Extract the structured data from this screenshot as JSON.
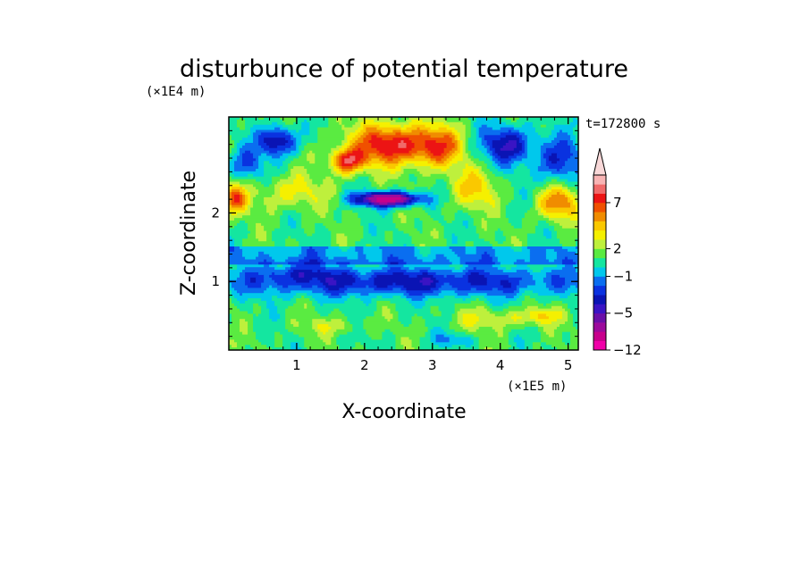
{
  "chart_data": {
    "type": "heatmap",
    "title": "disturbunce of potential temperature",
    "time_label": "t=172800 s",
    "xlabel": "X-coordinate",
    "ylabel": "Z-coordinate",
    "x_scale_label": "(×1E5 m)",
    "y_scale_label": "(×1E4 m)",
    "xlim": [
      0,
      5.15
    ],
    "ylim": [
      0,
      3.4
    ],
    "x_ticks": [
      1,
      2,
      3,
      4,
      5
    ],
    "x_tick_labels": [
      "1",
      "2",
      "3",
      "4",
      "5"
    ],
    "y_ticks": [
      1,
      2
    ],
    "y_tick_labels": [
      "1",
      "2"
    ],
    "colorbar": {
      "levels": [
        -12,
        -10,
        -8,
        -6,
        -5,
        -4,
        -3,
        -2,
        -1,
        0,
        1,
        2,
        3,
        4,
        5,
        6,
        7,
        8,
        9,
        10
      ],
      "colors": [
        "#f000a8",
        "#c8008c",
        "#9c0a9c",
        "#6a0fa8",
        "#3a14c4",
        "#0a14b4",
        "#0a32e0",
        "#0a6ef0",
        "#00c8ec",
        "#14e6a0",
        "#5aeb41",
        "#bef03c",
        "#f5f000",
        "#fac800",
        "#f08c00",
        "#f05000",
        "#ec1414",
        "#f06a6a",
        "#f8b4b4"
      ],
      "extend_top_color": "#f8d8d8",
      "tick_labels": [
        {
          "value": 7,
          "label": "7"
        },
        {
          "value": 2,
          "label": "2"
        },
        {
          "value": -1,
          "label": "−1"
        },
        {
          "value": -5,
          "label": "−5"
        },
        {
          "value": -12,
          "label": "−12"
        }
      ]
    },
    "field_features": [
      {
        "x": 0.72,
        "z": 3.05,
        "value": -5.5,
        "sx": 0.28,
        "sz": 0.22
      },
      {
        "x": 0.25,
        "z": 2.7,
        "value": -3.0,
        "sx": 0.25,
        "sz": 0.25
      },
      {
        "x": 4.1,
        "z": 3.0,
        "value": -5.0,
        "sx": 0.38,
        "sz": 0.28
      },
      {
        "x": 4.85,
        "z": 2.75,
        "value": -4.0,
        "sx": 0.35,
        "sz": 0.35
      },
      {
        "x": 2.35,
        "z": 2.2,
        "value": -10.5,
        "sx": 0.45,
        "sz": 0.1
      },
      {
        "x": 2.4,
        "z": 3.0,
        "value": 7.0,
        "sx": 0.6,
        "sz": 0.3
      },
      {
        "x": 1.75,
        "z": 2.75,
        "value": 6.5,
        "sx": 0.25,
        "sz": 0.18
      },
      {
        "x": 3.1,
        "z": 2.95,
        "value": 4.5,
        "sx": 0.35,
        "sz": 0.3
      },
      {
        "x": 0.1,
        "z": 2.2,
        "value": 5.0,
        "sx": 0.18,
        "sz": 0.22
      },
      {
        "x": 4.85,
        "z": 2.15,
        "value": 5.0,
        "sx": 0.3,
        "sz": 0.25
      },
      {
        "x": 0.9,
        "z": 2.3,
        "value": 2.5,
        "sx": 0.5,
        "sz": 0.25
      },
      {
        "x": 3.6,
        "z": 2.35,
        "value": 3.0,
        "sx": 0.35,
        "sz": 0.3
      },
      {
        "x": 2.6,
        "z": 1.0,
        "value": -4.5,
        "sx": 3.0,
        "sz": 0.22
      },
      {
        "x": 1.0,
        "z": 1.15,
        "value": -2.0,
        "sx": 0.5,
        "sz": 0.15
      },
      {
        "x": 1.5,
        "z": 0.35,
        "value": 1.5,
        "sx": 0.5,
        "sz": 0.12
      },
      {
        "x": 3.9,
        "z": 0.45,
        "value": 2.0,
        "sx": 0.6,
        "sz": 0.15
      },
      {
        "x": 4.6,
        "z": 0.5,
        "value": 2.5,
        "sx": 0.3,
        "sz": 0.12
      },
      {
        "x": 3.3,
        "z": 0.15,
        "value": -2.0,
        "sx": 0.3,
        "sz": 0.1
      }
    ]
  }
}
